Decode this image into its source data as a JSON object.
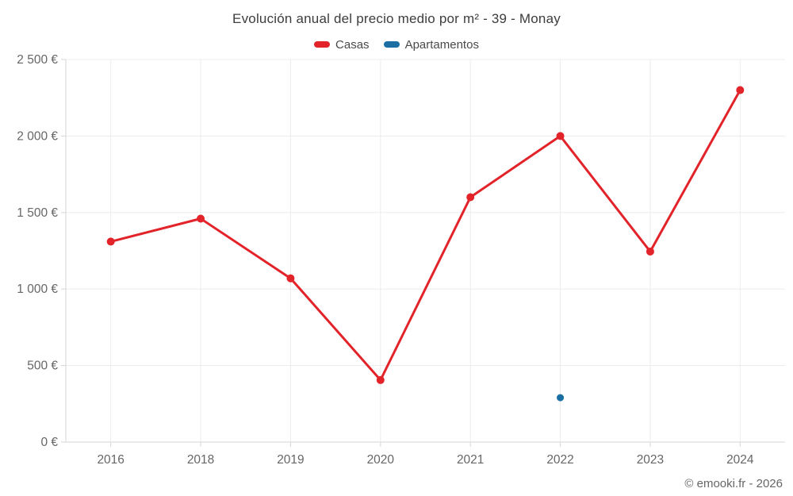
{
  "chart_data": {
    "type": "line",
    "title": "Evolución anual del precio medio por m² - 39 - Monay",
    "categories": [
      "2016",
      "2018",
      "2019",
      "2020",
      "2021",
      "2022",
      "2023",
      "2024"
    ],
    "series": [
      {
        "name": "Casas",
        "color": "#e2242a",
        "marker_radius": 5,
        "values": [
          1310,
          1460,
          1070,
          405,
          1600,
          2000,
          1245,
          2300
        ]
      },
      {
        "name": "Apartamentos",
        "color": "#1b6fa3",
        "marker_radius": 4.5,
        "values": [
          null,
          null,
          null,
          null,
          null,
          290,
          null,
          null
        ]
      }
    ],
    "ylim": [
      0,
      2500
    ],
    "ytick_step": 500,
    "ytick_labels": [
      "0 €",
      "500 €",
      "1 000 €",
      "1 500 €",
      "2 000 €",
      "2 500 €"
    ],
    "xlabel": "",
    "ylabel": "",
    "grid": true,
    "legend_position": "top",
    "currency_suffix": "€"
  },
  "footer": {
    "credit": "© emooki.fr - 2026"
  },
  "colors": {
    "grid": "#ececec",
    "axis": "#d6d6d6",
    "tick_text": "#666666",
    "title_text": "#3d3d3d",
    "legend_text": "#4a4a4a",
    "background": "#ffffff"
  }
}
